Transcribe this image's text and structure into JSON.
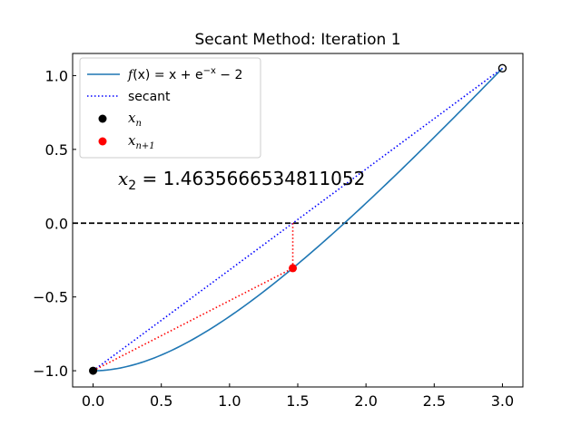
{
  "chart_data": {
    "type": "line",
    "title": "Secant Method: Iteration 1",
    "xlabel": "",
    "ylabel": "",
    "xlim": [
      -0.15,
      3.15
    ],
    "ylim": [
      -1.11,
      1.15
    ],
    "xticks": [
      0.0,
      0.5,
      1.0,
      1.5,
      2.0,
      2.5,
      3.0
    ],
    "xtick_labels": [
      "0.0",
      "0.5",
      "1.0",
      "1.5",
      "2.0",
      "2.5",
      "3.0"
    ],
    "yticks": [
      -1.0,
      -0.5,
      0.0,
      0.5,
      1.0
    ],
    "ytick_labels": [
      "−1.0",
      "−0.5",
      "0.0",
      "0.5",
      "1.0"
    ],
    "grid": false,
    "legend_position": "upper-left",
    "function": {
      "label": "f(x) = x + e^{-x} - 2",
      "color": "#1f77b4",
      "x": [
        0.0,
        0.25,
        0.5,
        0.75,
        1.0,
        1.25,
        1.5,
        1.75,
        2.0,
        2.25,
        2.5,
        2.75,
        3.0
      ],
      "y": [
        -1.0,
        -0.971,
        -0.893,
        -0.778,
        -0.632,
        -0.463,
        -0.277,
        -0.076,
        0.135,
        0.355,
        0.582,
        0.814,
        1.05
      ]
    },
    "secant": {
      "label": "secant",
      "color": "#0000ff",
      "points": [
        [
          0.0,
          -1.0
        ],
        [
          3.0,
          1.05
        ]
      ]
    },
    "step_to_next": {
      "color": "#ff0000",
      "from": [
        0.0,
        -1.0
      ],
      "to": [
        1.4636,
        -0.305
      ],
      "vertical": [
        [
          1.4636,
          0.0
        ],
        [
          1.4636,
          -0.305
        ]
      ]
    },
    "current_points": {
      "label": "x_n",
      "color": "#000000",
      "filled": [
        0.0,
        -1.0
      ],
      "hollow": [
        3.0,
        1.05
      ]
    },
    "next_point": {
      "label": "x_{n+1}",
      "color": "#ff0000",
      "point": [
        1.4636,
        -0.305
      ]
    },
    "zero_line": {
      "y": 0.0,
      "color": "#000000"
    },
    "annotation": {
      "lhs": "x",
      "sub": "2",
      "rhs": " = 1.4635666534811052"
    },
    "legend": [
      {
        "label_parts": [
          "f",
          "(x) = x + e",
          "−x",
          " − 2"
        ],
        "style": "line",
        "color": "#1f77b4"
      },
      {
        "label": "secant",
        "style": "dotted",
        "color": "#0000ff"
      },
      {
        "label_main": "x",
        "label_sub": "n",
        "style": "marker",
        "color": "#000000"
      },
      {
        "label_main": "x",
        "label_sub": "n+1",
        "style": "marker",
        "color": "#ff0000"
      }
    ]
  }
}
